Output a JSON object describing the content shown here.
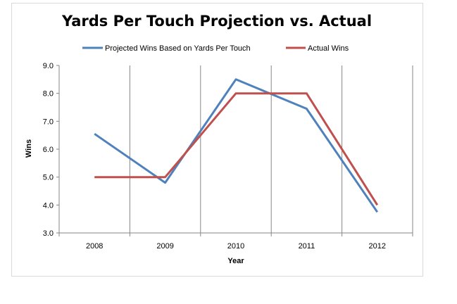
{
  "chart_data": {
    "type": "line",
    "title": "Yards Per Touch Projection vs. Actual",
    "xlabel": "Year",
    "ylabel": "Wins",
    "categories": [
      "2008",
      "2009",
      "2010",
      "2011",
      "2012"
    ],
    "ylim": [
      3.0,
      9.0
    ],
    "yticks": [
      "3.0",
      "4.0",
      "5.0",
      "6.0",
      "7.0",
      "8.0",
      "9.0"
    ],
    "grid": "vertical",
    "legend_position": "top",
    "series": [
      {
        "name": "Projected Wins Based on Yards Per Touch",
        "color": "#4f81bd",
        "values": [
          6.55,
          4.8,
          8.5,
          7.45,
          3.75
        ]
      },
      {
        "name": "Actual Wins",
        "color": "#c0504d",
        "values": [
          5.0,
          5.0,
          8.0,
          8.0,
          4.0
        ]
      }
    ]
  }
}
